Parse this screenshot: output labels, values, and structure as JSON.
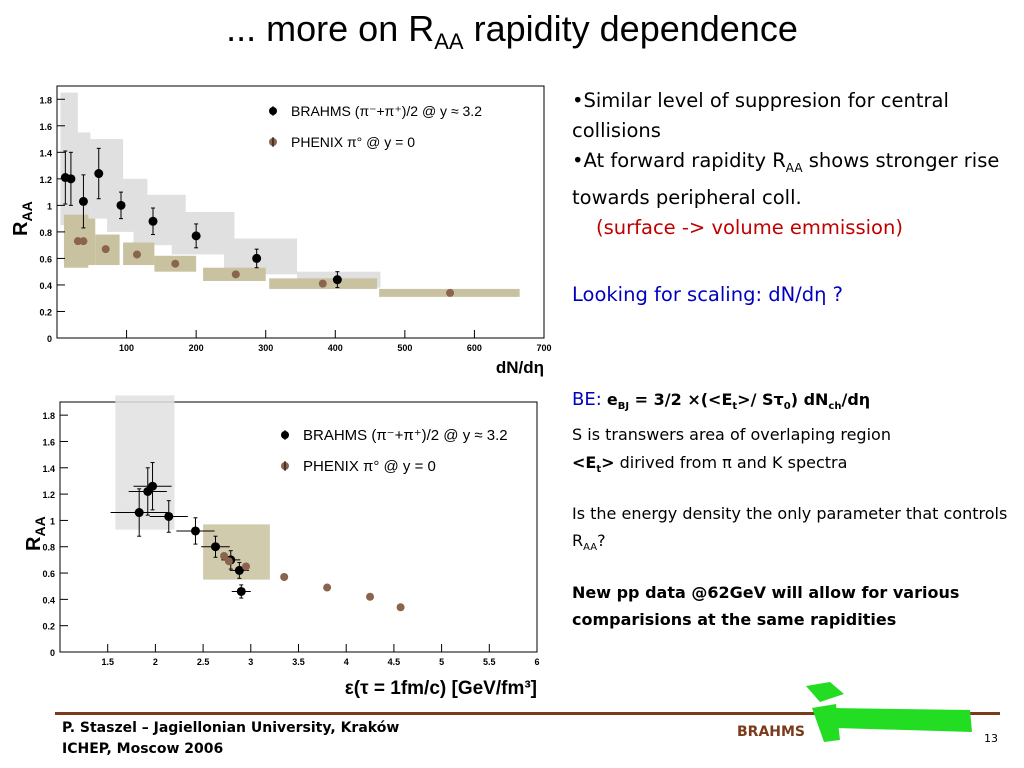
{
  "title": {
    "prefix": "... more on R",
    "sub": "AA",
    "suffix": " rapidity dependence"
  },
  "bullets": {
    "b1": "•Similar level of suppresion for central collisions",
    "b2_pre": "•At forward rapidity R",
    "b2_sub": "AA",
    "b2_post": " shows stronger rise towards peripheral coll.",
    "b3": "(surface -> volume emmission)"
  },
  "scaling": "Looking for scaling: dN/dη ?",
  "be": {
    "label": "BE:",
    "formula": "e",
    "formula_sub": "BJ",
    "formula_rest": " = 3/2 ×(<E",
    "formula_sub2": "t",
    "formula_rest2": ">/ Sτ",
    "formula_sub3": "0",
    "formula_rest3": ") dN",
    "formula_sub4": "ch",
    "formula_rest4": "/dη",
    "line2": "S is transwers area of overlaping region",
    "line3_bold": "<E",
    "line3_sub": "t",
    "line3_bold2": ">",
    "line3": " dirived from π and K spectra"
  },
  "question": {
    "pre": "Is the energy density the only parameter that controls R",
    "sub": "AA",
    "post": "?"
  },
  "newpp": "New pp data @62GeV will allow for various comparisions at the same rapidities",
  "footer": {
    "line1": "P. Staszel – Jagiellonian University, Kraków",
    "line2": "ICHEP, Moscow 2006",
    "brahms": "BRAHMS",
    "page": "13"
  },
  "colors": {
    "brahms": "#000000",
    "phenix": "#8b6450",
    "brahms_band": "#e0e0e0",
    "phenix_band": "#c9c2a0",
    "footer_bar": "#7a3b1c",
    "logo_green": "#22dd22"
  },
  "chart_data": [
    {
      "type": "scatter",
      "xlabel": "dN/dη",
      "ylabel": "RAA",
      "xlim": [
        0,
        700
      ],
      "ylim": [
        0,
        1.9
      ],
      "xticks": [
        100,
        200,
        300,
        400,
        500,
        600,
        700
      ],
      "yticks": [
        0,
        0.2,
        0.4,
        0.6,
        0.8,
        1,
        1.2,
        1.4,
        1.6,
        1.8
      ],
      "legend": [
        "BRAHMS  (π⁻+π⁺)/2 @ y ≈ 3.2",
        "PHENIX  π° @ y = 0"
      ],
      "series": [
        {
          "name": "BRAHMS  (π⁻+π⁺)/2 @ y ≈ 3.2",
          "points": [
            {
              "x": 12,
              "y": 1.21,
              "ey": 0.2,
              "bx": [
                5,
                22
              ],
              "by": [
                0.85,
                1.85
              ]
            },
            {
              "x": 20,
              "y": 1.2,
              "ey": 0.2,
              "bx": [
                15,
                30
              ],
              "by": [
                0.85,
                1.85
              ]
            },
            {
              "x": 38,
              "y": 1.03,
              "ey": 0.2,
              "bx": [
                28,
                48
              ],
              "by": [
                0.8,
                1.55
              ]
            },
            {
              "x": 60,
              "y": 1.24,
              "ey": 0.19,
              "bx": [
                48,
                95
              ],
              "by": [
                0.9,
                1.5
              ]
            },
            {
              "x": 92,
              "y": 1.0,
              "ey": 0.1,
              "bx": [
                72,
                130
              ],
              "by": [
                0.8,
                1.2
              ]
            },
            {
              "x": 138,
              "y": 0.88,
              "ey": 0.1,
              "bx": [
                110,
                185
              ],
              "by": [
                0.7,
                1.08
              ]
            },
            {
              "x": 200,
              "y": 0.77,
              "ey": 0.09,
              "bx": [
                165,
                255
              ],
              "by": [
                0.63,
                0.95
              ]
            },
            {
              "x": 287,
              "y": 0.6,
              "ey": 0.07,
              "bx": [
                240,
                345
              ],
              "by": [
                0.48,
                0.75
              ]
            },
            {
              "x": 403,
              "y": 0.44,
              "ey": 0.06,
              "bx": [
                345,
                465
              ],
              "by": [
                0.38,
                0.5
              ]
            }
          ]
        },
        {
          "name": "PHENIX  π° @ y = 0",
          "points": [
            {
              "x": 30,
              "y": 0.73,
              "bx": [
                10,
                45
              ],
              "by": [
                0.53,
                0.93
              ]
            },
            {
              "x": 38,
              "y": 0.73,
              "bx": [
                25,
                55
              ],
              "by": [
                0.55,
                0.9
              ]
            },
            {
              "x": 70,
              "y": 0.67,
              "bx": [
                55,
                90
              ],
              "by": [
                0.55,
                0.78
              ]
            },
            {
              "x": 115,
              "y": 0.63,
              "bx": [
                95,
                140
              ],
              "by": [
                0.55,
                0.72
              ]
            },
            {
              "x": 170,
              "y": 0.56,
              "bx": [
                140,
                200
              ],
              "by": [
                0.5,
                0.62
              ]
            },
            {
              "x": 257,
              "y": 0.48,
              "bx": [
                210,
                300
              ],
              "by": [
                0.43,
                0.53
              ]
            },
            {
              "x": 382,
              "y": 0.41,
              "bx": [
                305,
                460
              ],
              "by": [
                0.37,
                0.45
              ]
            },
            {
              "x": 565,
              "y": 0.34,
              "bx": [
                463,
                665
              ],
              "by": [
                0.31,
                0.37
              ]
            }
          ]
        }
      ]
    },
    {
      "type": "scatter",
      "xlabel": "ε(τ = 1fm/c) [GeV/fm³]",
      "ylabel": "RAA",
      "xlim": [
        1,
        6
      ],
      "ylim": [
        0,
        1.9
      ],
      "xticks": [
        1.5,
        2,
        2.5,
        3,
        3.5,
        4,
        4.5,
        5,
        5.5,
        6
      ],
      "yticks": [
        0,
        0.2,
        0.4,
        0.6,
        0.8,
        1,
        1.2,
        1.4,
        1.6,
        1.8
      ],
      "legend": [
        "BRAHMS  (π⁻+π⁺)/2 @ y ≈ 3.2",
        "PHENIX  π° @ y = 0"
      ],
      "series": [
        {
          "name": "BRAHMS  (π⁻+π⁺)/2 @ y ≈ 3.2",
          "points": [
            {
              "x": 1.83,
              "y": 1.06,
              "ex": 0.3,
              "ey": 0.18
            },
            {
              "x": 1.92,
              "y": 1.22,
              "ex": 0.2,
              "ey": 0.18
            },
            {
              "x": 1.97,
              "y": 1.26,
              "ex": 0.2,
              "ey": 0.18
            },
            {
              "x": 2.14,
              "y": 1.03,
              "ex": 0.2,
              "ey": 0.12
            },
            {
              "x": 2.42,
              "y": 0.92,
              "ex": 0.2,
              "ey": 0.1
            },
            {
              "x": 2.63,
              "y": 0.8,
              "ex": 0.15,
              "ey": 0.08
            },
            {
              "x": 2.79,
              "y": 0.7,
              "ex": 0.1,
              "ey": 0.07
            },
            {
              "x": 2.88,
              "y": 0.62,
              "ex": 0.1,
              "ey": 0.06
            },
            {
              "x": 2.9,
              "y": 0.46,
              "ex": 0.1,
              "ey": 0.05
            }
          ],
          "band": {
            "bx": [
              1.58,
              2.2
            ],
            "by": [
              1.16,
              1.95
            ]
          },
          "band2": {
            "bx": [
              1.58,
              2.2
            ],
            "by": [
              0.93,
              1.16
            ]
          }
        },
        {
          "name": "PHENIX  π° @ y = 0",
          "points": [
            {
              "x": 2.72,
              "y": 0.73
            },
            {
              "x": 2.77,
              "y": 0.69
            },
            {
              "x": 2.95,
              "y": 0.65
            },
            {
              "x": 3.35,
              "y": 0.57
            },
            {
              "x": 3.8,
              "y": 0.49
            },
            {
              "x": 4.25,
              "y": 0.42
            },
            {
              "x": 4.57,
              "y": 0.34
            }
          ],
          "band": {
            "bx": [
              2.5,
              3.2
            ],
            "by": [
              0.55,
              0.97
            ]
          }
        }
      ]
    }
  ]
}
